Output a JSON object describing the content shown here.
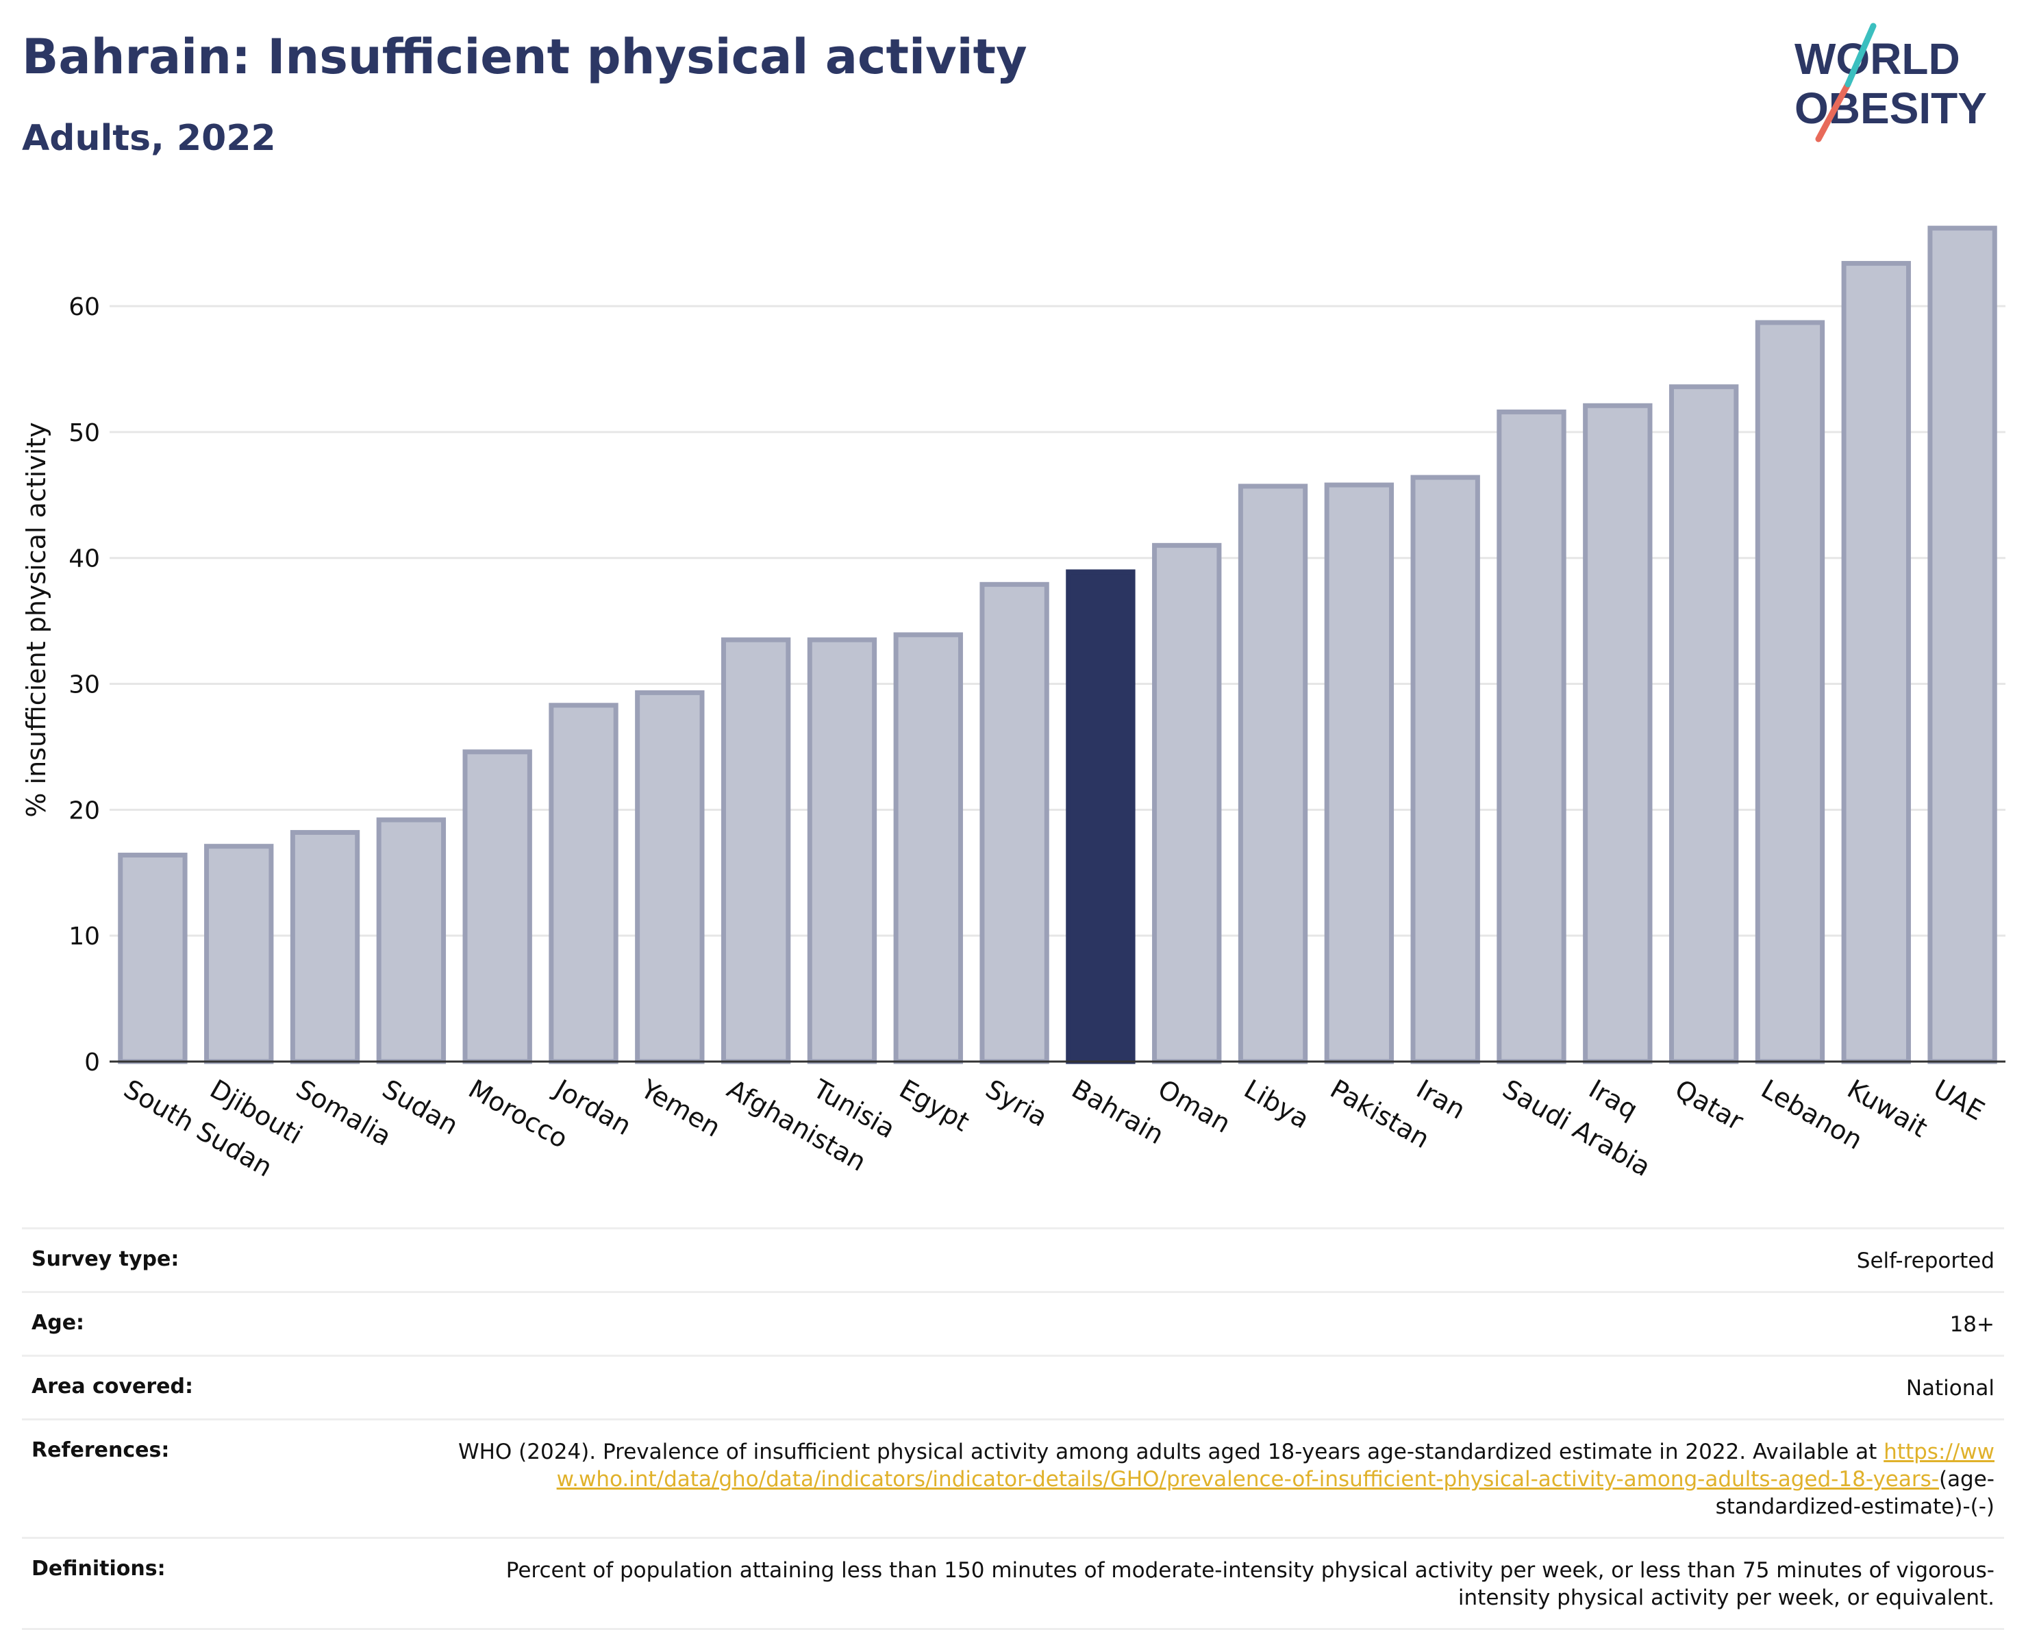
{
  "header": {
    "title": "Bahrain: Insufficient physical activity",
    "subtitle": "Adults, 2022"
  },
  "logo": {
    "line1": "WORLD",
    "line2": "OBESITY",
    "accent_teal": "#3bbfbf",
    "accent_coral": "#e86a5a"
  },
  "colors": {
    "bar": "#bfc3d1",
    "bar_stroke": "#9ba0b7",
    "highlight": "#2b3561"
  },
  "chart_data": {
    "type": "bar",
    "ylabel": "% insufficient physical activity",
    "ylim": [
      0,
      68
    ],
    "yticks": [
      0,
      10,
      20,
      30,
      40,
      50,
      60
    ],
    "grid": true,
    "highlight": "Bahrain",
    "categories": [
      "South Sudan",
      "Djibouti",
      "Somalia",
      "Sudan",
      "Morocco",
      "Jordan",
      "Yemen",
      "Afghanistan",
      "Tunisia",
      "Egypt",
      "Syria",
      "Bahrain",
      "Oman",
      "Libya",
      "Pakistan",
      "Iran",
      "Saudi Arabia",
      "Iraq",
      "Qatar",
      "Lebanon",
      "Kuwait",
      "UAE"
    ],
    "values": [
      16.4,
      17.1,
      18.2,
      19.2,
      24.6,
      28.3,
      29.3,
      33.5,
      33.5,
      33.9,
      37.9,
      38.9,
      41.0,
      45.7,
      45.8,
      46.4,
      51.6,
      52.1,
      53.6,
      58.7,
      63.4,
      66.2
    ]
  },
  "info": {
    "survey_type_label": "Survey type:",
    "survey_type_value": "Self-reported",
    "age_label": "Age:",
    "age_value": "18+",
    "area_label": "Area covered:",
    "area_value": "National",
    "references_label": "References:",
    "references_text": "WHO (2024). Prevalence of insufficient physical activity among adults aged 18-years age-standardized estimate in 2022. Available at",
    "references_link": "https://www.who.int/data/gho/data/indicators/indicator-details/GHO/prevalence-of-insufficient-physical-activity-among-adults-aged-18-years-",
    "references_suffix": "(age-standardized-estimate)-(-)",
    "definitions_label": "Definitions:",
    "definitions_text": "Percent of population attaining less than 150 minutes of moderate-intensity physical activity per week, or less than 75 minutes of vigorous-intensity physical activity per week, or equivalent."
  }
}
